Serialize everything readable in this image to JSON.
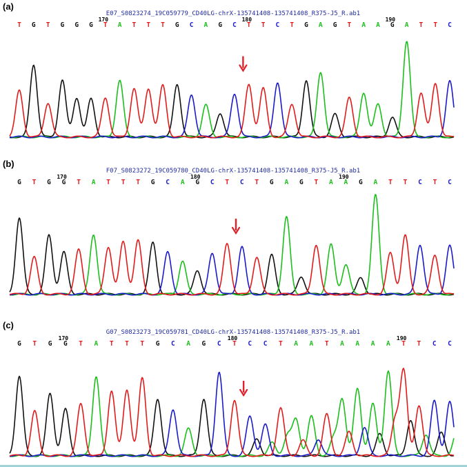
{
  "colors": {
    "A": "#1bbf1b",
    "C": "#1a1acb",
    "G": "#111111",
    "T": "#e11b1b",
    "arrow": "#e0202a",
    "title": "#1f2a9e"
  },
  "chart_data": [
    {
      "type": "chromatogram",
      "panel_label": "(a)",
      "file_title": "E07_S0823274_19C059779_CD40LG-chrX-135741408-135741408_R375-J5_R.ab1",
      "bases": [
        "T",
        "G",
        "T",
        "G",
        "G",
        "G",
        "T",
        "A",
        "T",
        "T",
        "T",
        "G",
        "C",
        "A",
        "G",
        "C",
        "T",
        "T",
        "C",
        "T",
        "G",
        "A",
        "G",
        "T",
        "A",
        "A",
        "G",
        "A",
        "T",
        "T",
        "C"
      ],
      "peak_heights": [
        0.45,
        0.7,
        0.33,
        0.55,
        0.38,
        0.37,
        0.38,
        0.55,
        0.47,
        0.47,
        0.5,
        0.51,
        0.41,
        0.31,
        0.23,
        0.42,
        0.51,
        0.47,
        0.53,
        0.32,
        0.55,
        0.63,
        0.22,
        0.38,
        0.43,
        0.32,
        0.19,
        0.93,
        0.43,
        0.52,
        0.54
      ],
      "position_labels": [
        {
          "pos": "170",
          "at_index": 6
        },
        {
          "pos": "180",
          "at_index": 16
        },
        {
          "pos": "190",
          "at_index": 26
        }
      ],
      "arrow_at_index": 16,
      "mixed_from_index": null
    },
    {
      "type": "chromatogram",
      "panel_label": "(b)",
      "file_title": "F07_S0823272_19C059780_CD40LG-chrX-135741408-135741408_R375-J5_R.ab1",
      "bases": [
        "G",
        "T",
        "G",
        "G",
        "T",
        "A",
        "T",
        "T",
        "T",
        "G",
        "C",
        "A",
        "G",
        "C",
        "T",
        "C",
        "T",
        "G",
        "A",
        "G",
        "T",
        "A",
        "A",
        "G",
        "A",
        "T",
        "T",
        "C",
        "T",
        "C"
      ],
      "peak_heights": [
        0.74,
        0.36,
        0.57,
        0.41,
        0.43,
        0.58,
        0.46,
        0.51,
        0.52,
        0.5,
        0.41,
        0.32,
        0.23,
        0.4,
        0.49,
        0.46,
        0.36,
        0.38,
        0.75,
        0.17,
        0.48,
        0.48,
        0.29,
        0.16,
        0.96,
        0.4,
        0.57,
        0.48,
        0.38,
        0.47
      ],
      "position_labels": [
        {
          "pos": "170",
          "at_index": 3
        },
        {
          "pos": "180",
          "at_index": 12
        },
        {
          "pos": "190",
          "at_index": 22
        }
      ],
      "arrow_at_index": 15,
      "mixed_from_index": null
    },
    {
      "type": "chromatogram",
      "panel_label": "(c)",
      "file_title": "G07_S0823273_19C059781_CD40LG-chrX-135741408-135741408_R375-J5_R.ab1",
      "bases": [
        "G",
        "T",
        "G",
        "G",
        "T",
        "A",
        "T",
        "T",
        "T",
        "G",
        "C",
        "A",
        "G",
        "C",
        "T",
        "C",
        "C",
        "T",
        "A",
        "A",
        "T",
        "A",
        "A",
        "A",
        "A",
        "T",
        "T",
        "C",
        "C"
      ],
      "peak_heights": [
        0.77,
        0.43,
        0.6,
        0.45,
        0.5,
        0.77,
        0.63,
        0.64,
        0.75,
        0.55,
        0.45,
        0.26,
        0.55,
        0.81,
        0.54,
        0.38,
        0.3,
        0.46,
        0.35,
        0.38,
        0.4,
        0.55,
        0.65,
        0.5,
        0.82,
        0.82,
        0.49,
        0.53,
        0.52
      ],
      "position_labels": [
        {
          "pos": "170",
          "at_index": 3
        },
        {
          "pos": "180",
          "at_index": 14
        },
        {
          "pos": "190",
          "at_index": 25
        }
      ],
      "arrow_at_index": 15,
      "mixed_from_index": 15
    }
  ]
}
